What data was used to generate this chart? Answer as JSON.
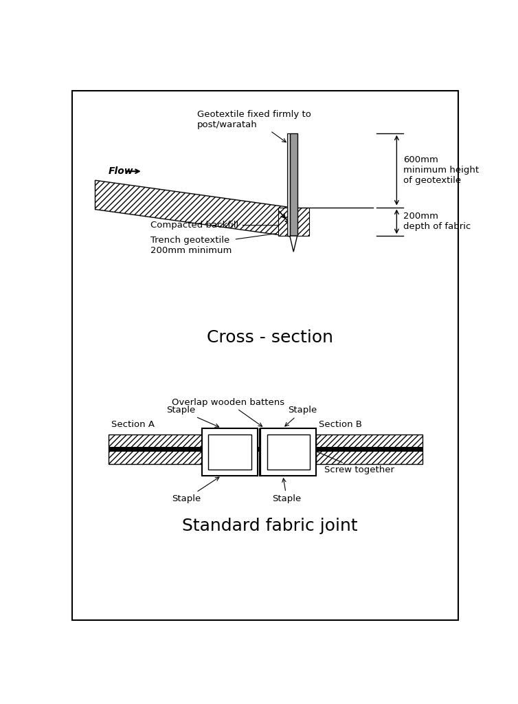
{
  "bg_color": "#ffffff",
  "border_color": "#000000",
  "gray_color": "#999999",
  "title1": "Cross - section",
  "title2": "Standard fabric joint",
  "title_fontsize": 18,
  "label_fontsize": 9.5,
  "flow_label": "Flow",
  "label_geotextile": "Geotextile fixed firmly to\npost/waratah",
  "label_backfill": "Compacted backfill",
  "label_trench": "Trench geotextile\n200mm minimum",
  "label_600mm": "600mm\nminimum height\nof geotextile",
  "label_200mm": "200mm\ndepth of fabric",
  "label_overlap": "Overlap wooden battens",
  "label_staple_tl": "Staple",
  "label_staple_tr": "Staple",
  "label_staple_bl": "Staple",
  "label_staple_br": "Staple",
  "label_section_a": "Section A",
  "label_section_b": "Section B",
  "label_screw": "Screw together"
}
